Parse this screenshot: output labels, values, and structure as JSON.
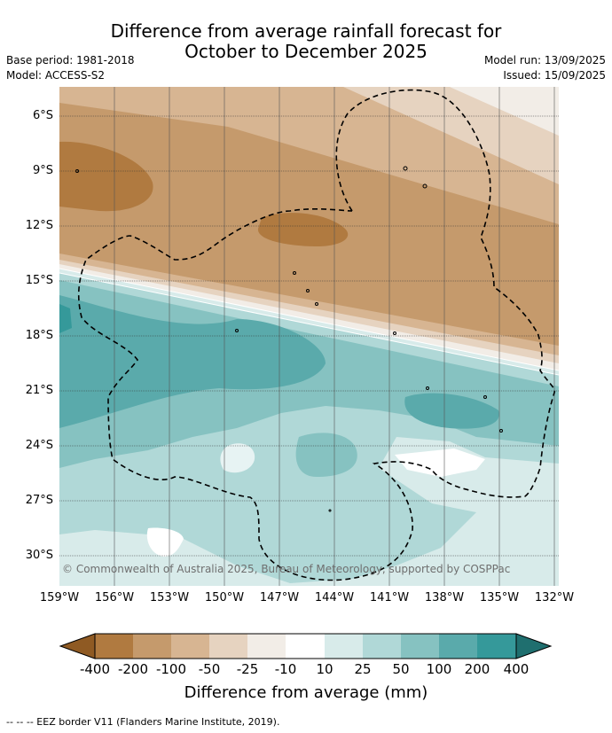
{
  "title": {
    "line1": "Difference from average rainfall forecast for",
    "line2": "October to December 2025"
  },
  "meta": {
    "base_period": "Base period: 1981-2018",
    "model": "Model: ACCESS-S2",
    "model_run": "Model run: 13/09/2025",
    "issued": "Issued: 15/09/2025"
  },
  "map": {
    "lat_labels": [
      "6°S",
      "9°S",
      "12°S",
      "15°S",
      "18°S",
      "21°S",
      "24°S",
      "27°S",
      "30°S"
    ],
    "lon_labels": [
      "159°W",
      "156°W",
      "153°W",
      "150°W",
      "147°W",
      "144°W",
      "141°W",
      "138°W",
      "135°W",
      "132°W"
    ],
    "copyright": "© Commonwealth of Australia 2025, Bureau of Meteorology, supported by COSPPac",
    "colors": {
      "le_-400": "#8f5a23",
      "-400_-200": "#b07a40",
      "-200_-100": "#c59a6c",
      "-100_-50": "#d7b592",
      "-50_-25": "#e6d3c0",
      "-25_-10": "#f2ede7",
      "-10_10": "#ffffff",
      "10_25": "#d8ebea",
      "25_50": "#b0d8d7",
      "50_100": "#86c2c1",
      "100_200": "#5aaaab",
      "200_400": "#35999a",
      "ge_400": "#1f6f6f"
    }
  },
  "colorbar": {
    "ticks": [
      "-400",
      "-200",
      "-100",
      "-50",
      "-25",
      "-10",
      "10",
      "25",
      "50",
      "100",
      "200",
      "400"
    ],
    "title": "Difference from average (mm)"
  },
  "footnote": "-- -- -- EEZ border V11 (Flanders Marine Institute, 2019)."
}
